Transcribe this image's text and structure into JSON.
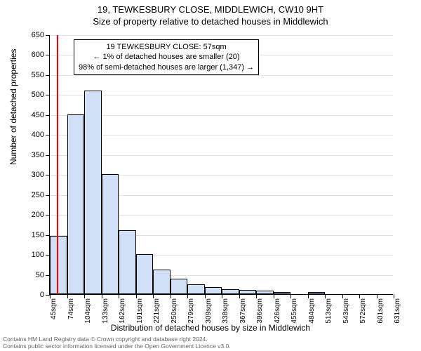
{
  "header": {
    "line1": "19, TEWKESBURY CLOSE, MIDDLEWICH, CW10 9HT",
    "line2": "Size of property relative to detached houses in Middlewich"
  },
  "chart": {
    "type": "histogram",
    "y_axis_label": "Number of detached properties",
    "x_axis_label": "Distribution of detached houses by size in Middlewich",
    "ylim": [
      0,
      650
    ],
    "ytick_step": 50,
    "background_color": "#ffffff",
    "grid_color": "#e0e0e0",
    "bar_fill": "#cfe0f7",
    "bar_stroke": "#000000",
    "marker_color": "#ff0000",
    "marker_x_sqm": 57,
    "x_start_sqm": 45,
    "x_step_sqm": 29.3,
    "x_labels": [
      "45sqm",
      "74sqm",
      "104sqm",
      "133sqm",
      "162sqm",
      "191sqm",
      "221sqm",
      "250sqm",
      "279sqm",
      "309sqm",
      "338sqm",
      "367sqm",
      "396sqm",
      "426sqm",
      "455sqm",
      "484sqm",
      "513sqm",
      "543sqm",
      "572sqm",
      "601sqm",
      "631sqm"
    ],
    "bar_values": [
      145,
      450,
      510,
      300,
      160,
      100,
      62,
      38,
      25,
      18,
      13,
      11,
      9,
      5,
      0,
      6,
      0,
      0,
      0,
      0
    ],
    "annotation": {
      "line1": "19 TEWKESBURY CLOSE: 57sqm",
      "line2": "← 1% of detached houses are smaller (20)",
      "line3": "98% of semi-detached houses are larger (1,347) →"
    }
  },
  "footer": {
    "line1": "Contains HM Land Registry data © Crown copyright and database right 2024.",
    "line2": "Contains public sector information licensed under the Open Government Licence v3.0."
  }
}
